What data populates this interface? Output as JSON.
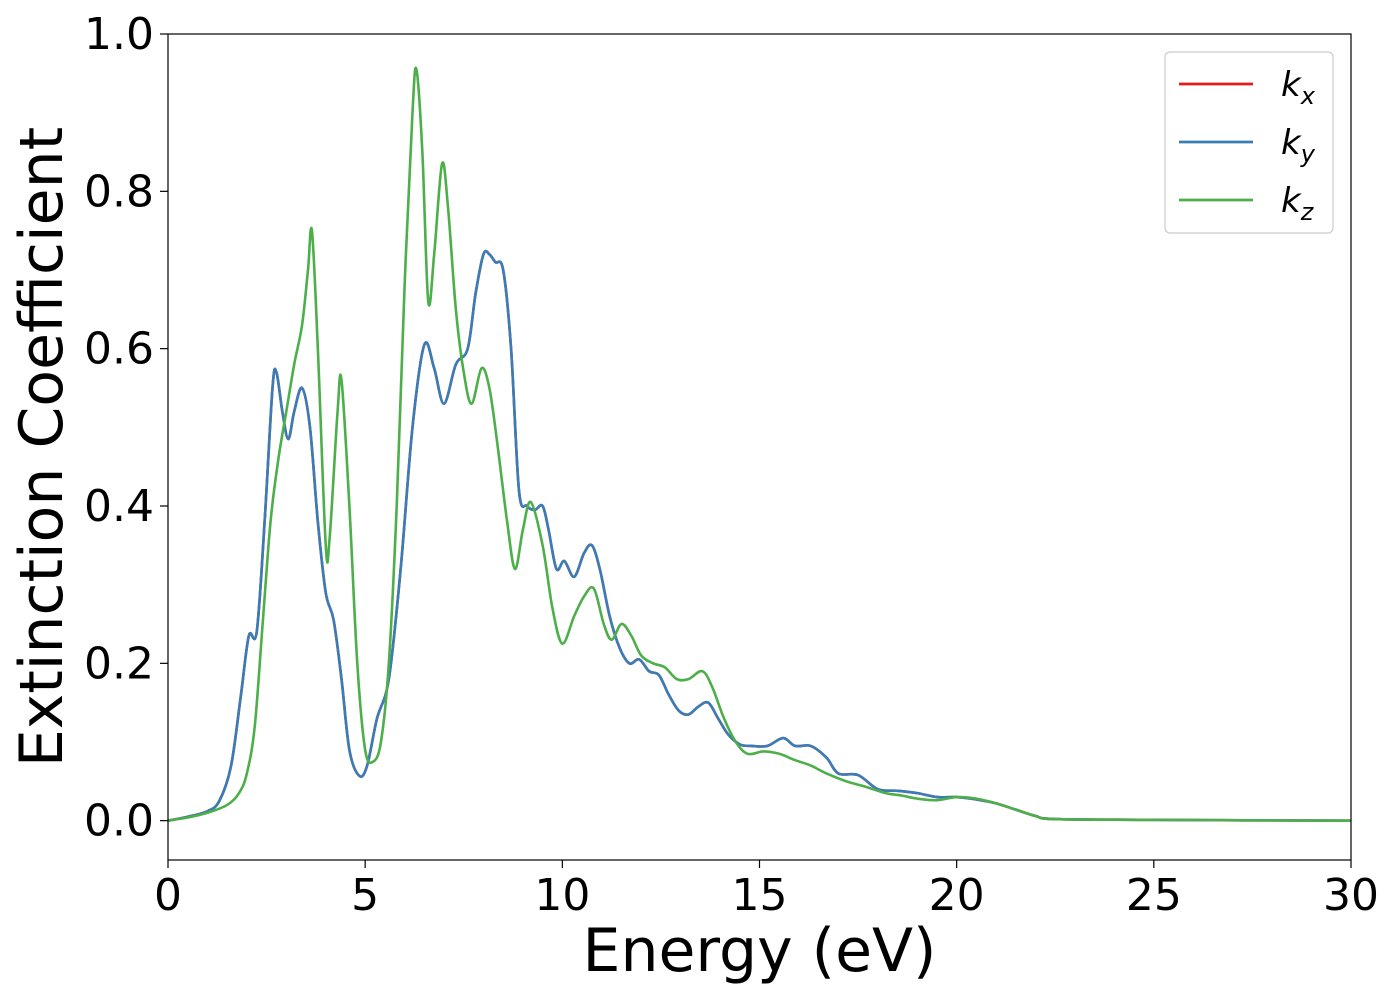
{
  "chart_data": {
    "type": "line",
    "xlabel": "Energy (eV)",
    "ylabel": "Extinction Coefficient",
    "xlim": [
      0,
      30
    ],
    "ylim": [
      -0.05,
      1.0
    ],
    "xticks": [
      0,
      5,
      10,
      15,
      20,
      25,
      30
    ],
    "xtick_labels": [
      "0",
      "5",
      "10",
      "15",
      "20",
      "25",
      "30"
    ],
    "yticks": [
      0.0,
      0.2,
      0.4,
      0.6,
      0.8,
      1.0
    ],
    "ytick_labels": [
      "0.0",
      "0.2",
      "0.4",
      "0.6",
      "0.8",
      "1.0"
    ],
    "grid": false,
    "legend_position": "top-right",
    "series": [
      {
        "name": "k_x",
        "legend_base": "k",
        "legend_sub": "x",
        "color": "#e41a1c",
        "points": [
          [
            0,
            0
          ],
          [
            0.5,
            0.005
          ],
          [
            1.0,
            0.012
          ],
          [
            1.3,
            0.025
          ],
          [
            1.6,
            0.07
          ],
          [
            1.85,
            0.16
          ],
          [
            2.05,
            0.235
          ],
          [
            2.25,
            0.24
          ],
          [
            2.45,
            0.38
          ],
          [
            2.65,
            0.55
          ],
          [
            2.75,
            0.57
          ],
          [
            2.9,
            0.52
          ],
          [
            3.05,
            0.485
          ],
          [
            3.2,
            0.52
          ],
          [
            3.4,
            0.55
          ],
          [
            3.6,
            0.5
          ],
          [
            3.8,
            0.38
          ],
          [
            4.0,
            0.29
          ],
          [
            4.2,
            0.255
          ],
          [
            4.4,
            0.18
          ],
          [
            4.6,
            0.09
          ],
          [
            4.85,
            0.057
          ],
          [
            5.05,
            0.07
          ],
          [
            5.3,
            0.13
          ],
          [
            5.6,
            0.18
          ],
          [
            5.9,
            0.32
          ],
          [
            6.2,
            0.5
          ],
          [
            6.5,
            0.605
          ],
          [
            6.75,
            0.575
          ],
          [
            7.0,
            0.53
          ],
          [
            7.3,
            0.58
          ],
          [
            7.6,
            0.6
          ],
          [
            7.8,
            0.67
          ],
          [
            8.0,
            0.72
          ],
          [
            8.15,
            0.72
          ],
          [
            8.3,
            0.71
          ],
          [
            8.5,
            0.7
          ],
          [
            8.7,
            0.6
          ],
          [
            8.9,
            0.42
          ],
          [
            9.1,
            0.4
          ],
          [
            9.3,
            0.395
          ],
          [
            9.5,
            0.4
          ],
          [
            9.65,
            0.37
          ],
          [
            9.85,
            0.32
          ],
          [
            10.05,
            0.33
          ],
          [
            10.3,
            0.31
          ],
          [
            10.55,
            0.34
          ],
          [
            10.75,
            0.35
          ],
          [
            10.95,
            0.32
          ],
          [
            11.2,
            0.26
          ],
          [
            11.45,
            0.22
          ],
          [
            11.7,
            0.2
          ],
          [
            11.95,
            0.205
          ],
          [
            12.2,
            0.19
          ],
          [
            12.45,
            0.185
          ],
          [
            12.7,
            0.16
          ],
          [
            12.95,
            0.14
          ],
          [
            13.2,
            0.135
          ],
          [
            13.45,
            0.145
          ],
          [
            13.7,
            0.15
          ],
          [
            13.95,
            0.13
          ],
          [
            14.2,
            0.11
          ],
          [
            14.5,
            0.097
          ],
          [
            14.8,
            0.095
          ],
          [
            15.2,
            0.095
          ],
          [
            15.6,
            0.105
          ],
          [
            15.9,
            0.095
          ],
          [
            16.3,
            0.095
          ],
          [
            16.7,
            0.08
          ],
          [
            17.0,
            0.06
          ],
          [
            17.5,
            0.058
          ],
          [
            18.0,
            0.04
          ],
          [
            18.5,
            0.038
          ],
          [
            19.0,
            0.035
          ],
          [
            19.5,
            0.03
          ],
          [
            20.0,
            0.03
          ],
          [
            20.5,
            0.027
          ],
          [
            21.0,
            0.022
          ],
          [
            21.5,
            0.014
          ],
          [
            22.0,
            0.006
          ],
          [
            22.5,
            0.002
          ],
          [
            25,
            0.001
          ],
          [
            30,
            0
          ]
        ]
      },
      {
        "name": "k_y",
        "legend_base": "k",
        "legend_sub": "y",
        "color": "#377eb8",
        "points": [
          [
            0,
            0
          ],
          [
            0.5,
            0.005
          ],
          [
            1.0,
            0.012
          ],
          [
            1.3,
            0.025
          ],
          [
            1.6,
            0.07
          ],
          [
            1.85,
            0.16
          ],
          [
            2.05,
            0.235
          ],
          [
            2.25,
            0.24
          ],
          [
            2.45,
            0.38
          ],
          [
            2.65,
            0.55
          ],
          [
            2.75,
            0.57
          ],
          [
            2.9,
            0.52
          ],
          [
            3.05,
            0.485
          ],
          [
            3.2,
            0.52
          ],
          [
            3.4,
            0.55
          ],
          [
            3.6,
            0.5
          ],
          [
            3.8,
            0.38
          ],
          [
            4.0,
            0.29
          ],
          [
            4.2,
            0.255
          ],
          [
            4.4,
            0.18
          ],
          [
            4.6,
            0.09
          ],
          [
            4.85,
            0.057
          ],
          [
            5.05,
            0.07
          ],
          [
            5.3,
            0.13
          ],
          [
            5.6,
            0.18
          ],
          [
            5.9,
            0.32
          ],
          [
            6.2,
            0.5
          ],
          [
            6.5,
            0.605
          ],
          [
            6.75,
            0.575
          ],
          [
            7.0,
            0.53
          ],
          [
            7.3,
            0.58
          ],
          [
            7.6,
            0.6
          ],
          [
            7.8,
            0.67
          ],
          [
            8.0,
            0.72
          ],
          [
            8.15,
            0.72
          ],
          [
            8.3,
            0.71
          ],
          [
            8.5,
            0.7
          ],
          [
            8.7,
            0.6
          ],
          [
            8.9,
            0.42
          ],
          [
            9.1,
            0.4
          ],
          [
            9.3,
            0.395
          ],
          [
            9.5,
            0.4
          ],
          [
            9.65,
            0.37
          ],
          [
            9.85,
            0.32
          ],
          [
            10.05,
            0.33
          ],
          [
            10.3,
            0.31
          ],
          [
            10.55,
            0.34
          ],
          [
            10.75,
            0.35
          ],
          [
            10.95,
            0.32
          ],
          [
            11.2,
            0.26
          ],
          [
            11.45,
            0.22
          ],
          [
            11.7,
            0.2
          ],
          [
            11.95,
            0.205
          ],
          [
            12.2,
            0.19
          ],
          [
            12.45,
            0.185
          ],
          [
            12.7,
            0.16
          ],
          [
            12.95,
            0.14
          ],
          [
            13.2,
            0.135
          ],
          [
            13.45,
            0.145
          ],
          [
            13.7,
            0.15
          ],
          [
            13.95,
            0.13
          ],
          [
            14.2,
            0.11
          ],
          [
            14.5,
            0.097
          ],
          [
            14.8,
            0.095
          ],
          [
            15.2,
            0.095
          ],
          [
            15.6,
            0.105
          ],
          [
            15.9,
            0.095
          ],
          [
            16.3,
            0.095
          ],
          [
            16.7,
            0.08
          ],
          [
            17.0,
            0.06
          ],
          [
            17.5,
            0.058
          ],
          [
            18.0,
            0.04
          ],
          [
            18.5,
            0.038
          ],
          [
            19.0,
            0.035
          ],
          [
            19.5,
            0.03
          ],
          [
            20.0,
            0.03
          ],
          [
            20.5,
            0.027
          ],
          [
            21.0,
            0.022
          ],
          [
            21.5,
            0.014
          ],
          [
            22.0,
            0.006
          ],
          [
            22.5,
            0.002
          ],
          [
            25,
            0.001
          ],
          [
            30,
            0
          ]
        ]
      },
      {
        "name": "k_z",
        "legend_base": "k",
        "legend_sub": "z",
        "color": "#4daf4a",
        "points": [
          [
            0,
            0
          ],
          [
            0.5,
            0.004
          ],
          [
            1.0,
            0.01
          ],
          [
            1.5,
            0.02
          ],
          [
            1.8,
            0.035
          ],
          [
            2.0,
            0.06
          ],
          [
            2.2,
            0.12
          ],
          [
            2.4,
            0.25
          ],
          [
            2.6,
            0.38
          ],
          [
            2.8,
            0.46
          ],
          [
            3.0,
            0.52
          ],
          [
            3.2,
            0.58
          ],
          [
            3.4,
            0.63
          ],
          [
            3.55,
            0.7
          ],
          [
            3.65,
            0.75
          ],
          [
            3.8,
            0.6
          ],
          [
            4.0,
            0.35
          ],
          [
            4.1,
            0.36
          ],
          [
            4.3,
            0.52
          ],
          [
            4.4,
            0.56
          ],
          [
            4.6,
            0.4
          ],
          [
            4.8,
            0.2
          ],
          [
            5.0,
            0.09
          ],
          [
            5.2,
            0.075
          ],
          [
            5.4,
            0.1
          ],
          [
            5.6,
            0.2
          ],
          [
            5.8,
            0.4
          ],
          [
            6.0,
            0.68
          ],
          [
            6.2,
            0.9
          ],
          [
            6.3,
            0.955
          ],
          [
            6.45,
            0.85
          ],
          [
            6.6,
            0.66
          ],
          [
            6.75,
            0.72
          ],
          [
            6.95,
            0.835
          ],
          [
            7.1,
            0.78
          ],
          [
            7.3,
            0.65
          ],
          [
            7.5,
            0.57
          ],
          [
            7.7,
            0.53
          ],
          [
            7.95,
            0.575
          ],
          [
            8.15,
            0.55
          ],
          [
            8.35,
            0.48
          ],
          [
            8.6,
            0.38
          ],
          [
            8.8,
            0.32
          ],
          [
            9.0,
            0.37
          ],
          [
            9.2,
            0.405
          ],
          [
            9.5,
            0.35
          ],
          [
            9.75,
            0.27
          ],
          [
            10.0,
            0.225
          ],
          [
            10.3,
            0.26
          ],
          [
            10.55,
            0.285
          ],
          [
            10.8,
            0.295
          ],
          [
            11.05,
            0.25
          ],
          [
            11.25,
            0.23
          ],
          [
            11.5,
            0.25
          ],
          [
            11.75,
            0.235
          ],
          [
            12.0,
            0.21
          ],
          [
            12.3,
            0.2
          ],
          [
            12.6,
            0.195
          ],
          [
            12.9,
            0.18
          ],
          [
            13.2,
            0.18
          ],
          [
            13.55,
            0.19
          ],
          [
            13.8,
            0.17
          ],
          [
            14.1,
            0.13
          ],
          [
            14.4,
            0.1
          ],
          [
            14.7,
            0.085
          ],
          [
            15.1,
            0.088
          ],
          [
            15.5,
            0.085
          ],
          [
            15.9,
            0.077
          ],
          [
            16.3,
            0.07
          ],
          [
            16.7,
            0.06
          ],
          [
            17.2,
            0.05
          ],
          [
            17.7,
            0.043
          ],
          [
            18.2,
            0.035
          ],
          [
            18.6,
            0.032
          ],
          [
            19.0,
            0.028
          ],
          [
            19.5,
            0.026
          ],
          [
            20.0,
            0.03
          ],
          [
            20.5,
            0.028
          ],
          [
            21.0,
            0.022
          ],
          [
            21.5,
            0.014
          ],
          [
            22.0,
            0.006
          ],
          [
            22.5,
            0.002
          ],
          [
            25,
            0.001
          ],
          [
            30,
            0
          ]
        ]
      }
    ]
  }
}
